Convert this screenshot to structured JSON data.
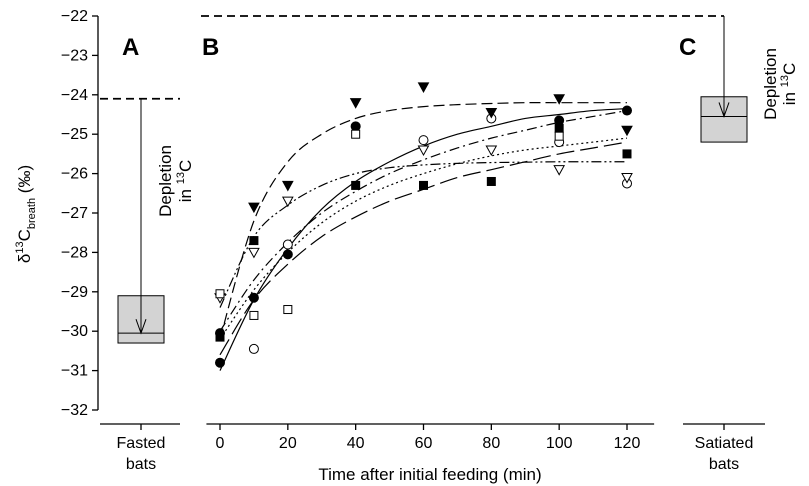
{
  "chart_data": {
    "type": "scatter",
    "ylabel_main": "δ",
    "ylabel_sup": "13",
    "ylabel_after": "C",
    "ylabel_sub": "breath",
    "ylabel_unit": " (‰)",
    "ylim": [
      -32,
      -22
    ],
    "yticks": [
      "−22",
      "−23",
      "−24",
      "−25",
      "−26",
      "−27",
      "−28",
      "−29",
      "−30",
      "−31",
      "−32"
    ],
    "grid": false,
    "panels": [
      {
        "letter": "A",
        "category_lines": [
          "Fasted",
          "bats"
        ],
        "box": {
          "q1": -30.3,
          "median": -30.05,
          "q3": -29.1
        },
        "reference_level": -24.1,
        "arrow_from": -24.1,
        "arrow_to": -30.05,
        "annotation": {
          "line1": "Depletion",
          "line2_pre": "in ",
          "line2_sup": "13",
          "line2_post": "C"
        }
      },
      {
        "letter": "B",
        "xlabel": "Time after initial feeding (min)",
        "xlim": [
          -4,
          128
        ],
        "xticks": [
          "0",
          "20",
          "40",
          "60",
          "80",
          "100",
          "120"
        ],
        "series": [
          {
            "marker": "circle-filled",
            "x": [
              0,
              0,
              10,
              20,
              40,
              100,
              120
            ],
            "y": [
              -30.05,
              -30.8,
              -29.15,
              -28.05,
              -24.8,
              -24.65,
              -24.4
            ]
          },
          {
            "marker": "circle-open",
            "x": [
              10,
              20,
              60,
              80,
              100,
              120
            ],
            "y": [
              -30.45,
              -27.8,
              -25.15,
              -24.6,
              -25.2,
              -26.25
            ]
          },
          {
            "marker": "triangle-down-filled",
            "x": [
              10,
              20,
              40,
              60,
              80,
              100,
              120
            ],
            "y": [
              -26.85,
              -26.3,
              -24.2,
              -23.8,
              -24.45,
              -24.1,
              -24.9
            ]
          },
          {
            "marker": "triangle-down-open",
            "x": [
              0,
              10,
              20,
              60,
              80,
              100,
              120
            ],
            "y": [
              -29.15,
              -28.0,
              -26.7,
              -25.4,
              -25.4,
              -25.9,
              -26.1
            ]
          },
          {
            "marker": "square-filled",
            "x": [
              0,
              10,
              40,
              60,
              80,
              100,
              120
            ],
            "y": [
              -30.15,
              -27.7,
              -26.3,
              -26.3,
              -26.2,
              -24.85,
              -25.5
            ]
          },
          {
            "marker": "square-open",
            "x": [
              0,
              10,
              20,
              40,
              100
            ],
            "y": [
              -29.05,
              -29.6,
              -29.45,
              -25.0,
              -25.05
            ]
          }
        ],
        "curves": [
          {
            "dash": "solid",
            "x": [
              0,
              10,
              20,
              30,
              40,
              50,
              60,
              70,
              80,
              90,
              100,
              110,
              120
            ],
            "y": [
              -31.0,
              -29.2,
              -27.9,
              -26.9,
              -26.2,
              -25.7,
              -25.3,
              -25.0,
              -24.8,
              -24.6,
              -24.5,
              -24.4,
              -24.35
            ]
          },
          {
            "dash": "dash",
            "x": [
              0,
              10,
              20,
              30,
              40,
              50,
              60,
              70,
              80,
              90,
              100,
              110,
              120
            ],
            "y": [
              -30.2,
              -27.2,
              -25.7,
              -25.0,
              -24.6,
              -24.4,
              -24.3,
              -24.25,
              -24.22,
              -24.2,
              -24.2,
              -24.2,
              -24.2
            ]
          },
          {
            "dash": "long-dash",
            "x": [
              0,
              10,
              20,
              30,
              40,
              50,
              60,
              70,
              80,
              90,
              100,
              110,
              120
            ],
            "y": [
              -30.6,
              -29.2,
              -28.3,
              -27.6,
              -27.1,
              -26.7,
              -26.4,
              -26.1,
              -25.9,
              -25.7,
              -25.5,
              -25.35,
              -25.2
            ]
          },
          {
            "dash": "dash-dot",
            "x": [
              0,
              10,
              20,
              30,
              40,
              50,
              60,
              70,
              80,
              90,
              100,
              110,
              120
            ],
            "y": [
              -30.0,
              -28.7,
              -27.75,
              -27.0,
              -26.45,
              -26.0,
              -25.65,
              -25.35,
              -25.1,
              -24.9,
              -24.7,
              -24.55,
              -24.4
            ]
          },
          {
            "dash": "dot",
            "x": [
              0,
              10,
              20,
              30,
              40,
              50,
              60,
              70,
              80,
              90,
              100,
              110,
              120
            ],
            "y": [
              -30.2,
              -28.95,
              -28.0,
              -27.25,
              -26.7,
              -26.3,
              -26.0,
              -25.75,
              -25.55,
              -25.4,
              -25.3,
              -25.2,
              -25.1
            ]
          },
          {
            "dash": "dash-dot-dot",
            "x": [
              0,
              10,
              20,
              30,
              40,
              50,
              60,
              70,
              80,
              90,
              100,
              110,
              120
            ],
            "y": [
              -29.4,
              -27.6,
              -26.8,
              -26.3,
              -26.0,
              -25.85,
              -25.78,
              -25.74,
              -25.72,
              -25.71,
              -25.7,
              -25.7,
              -25.7
            ]
          }
        ]
      },
      {
        "letter": "C",
        "category_lines": [
          "Satiated",
          "bats"
        ],
        "box": {
          "q1": -25.2,
          "median": -24.55,
          "q3": -24.05
        },
        "reference_level": -22.0,
        "arrow_from": -22.0,
        "arrow_to": -24.55,
        "annotation": {
          "line1": "Depletion",
          "line2_pre": "in ",
          "line2_sup": "13",
          "line2_post": "C"
        }
      }
    ]
  }
}
